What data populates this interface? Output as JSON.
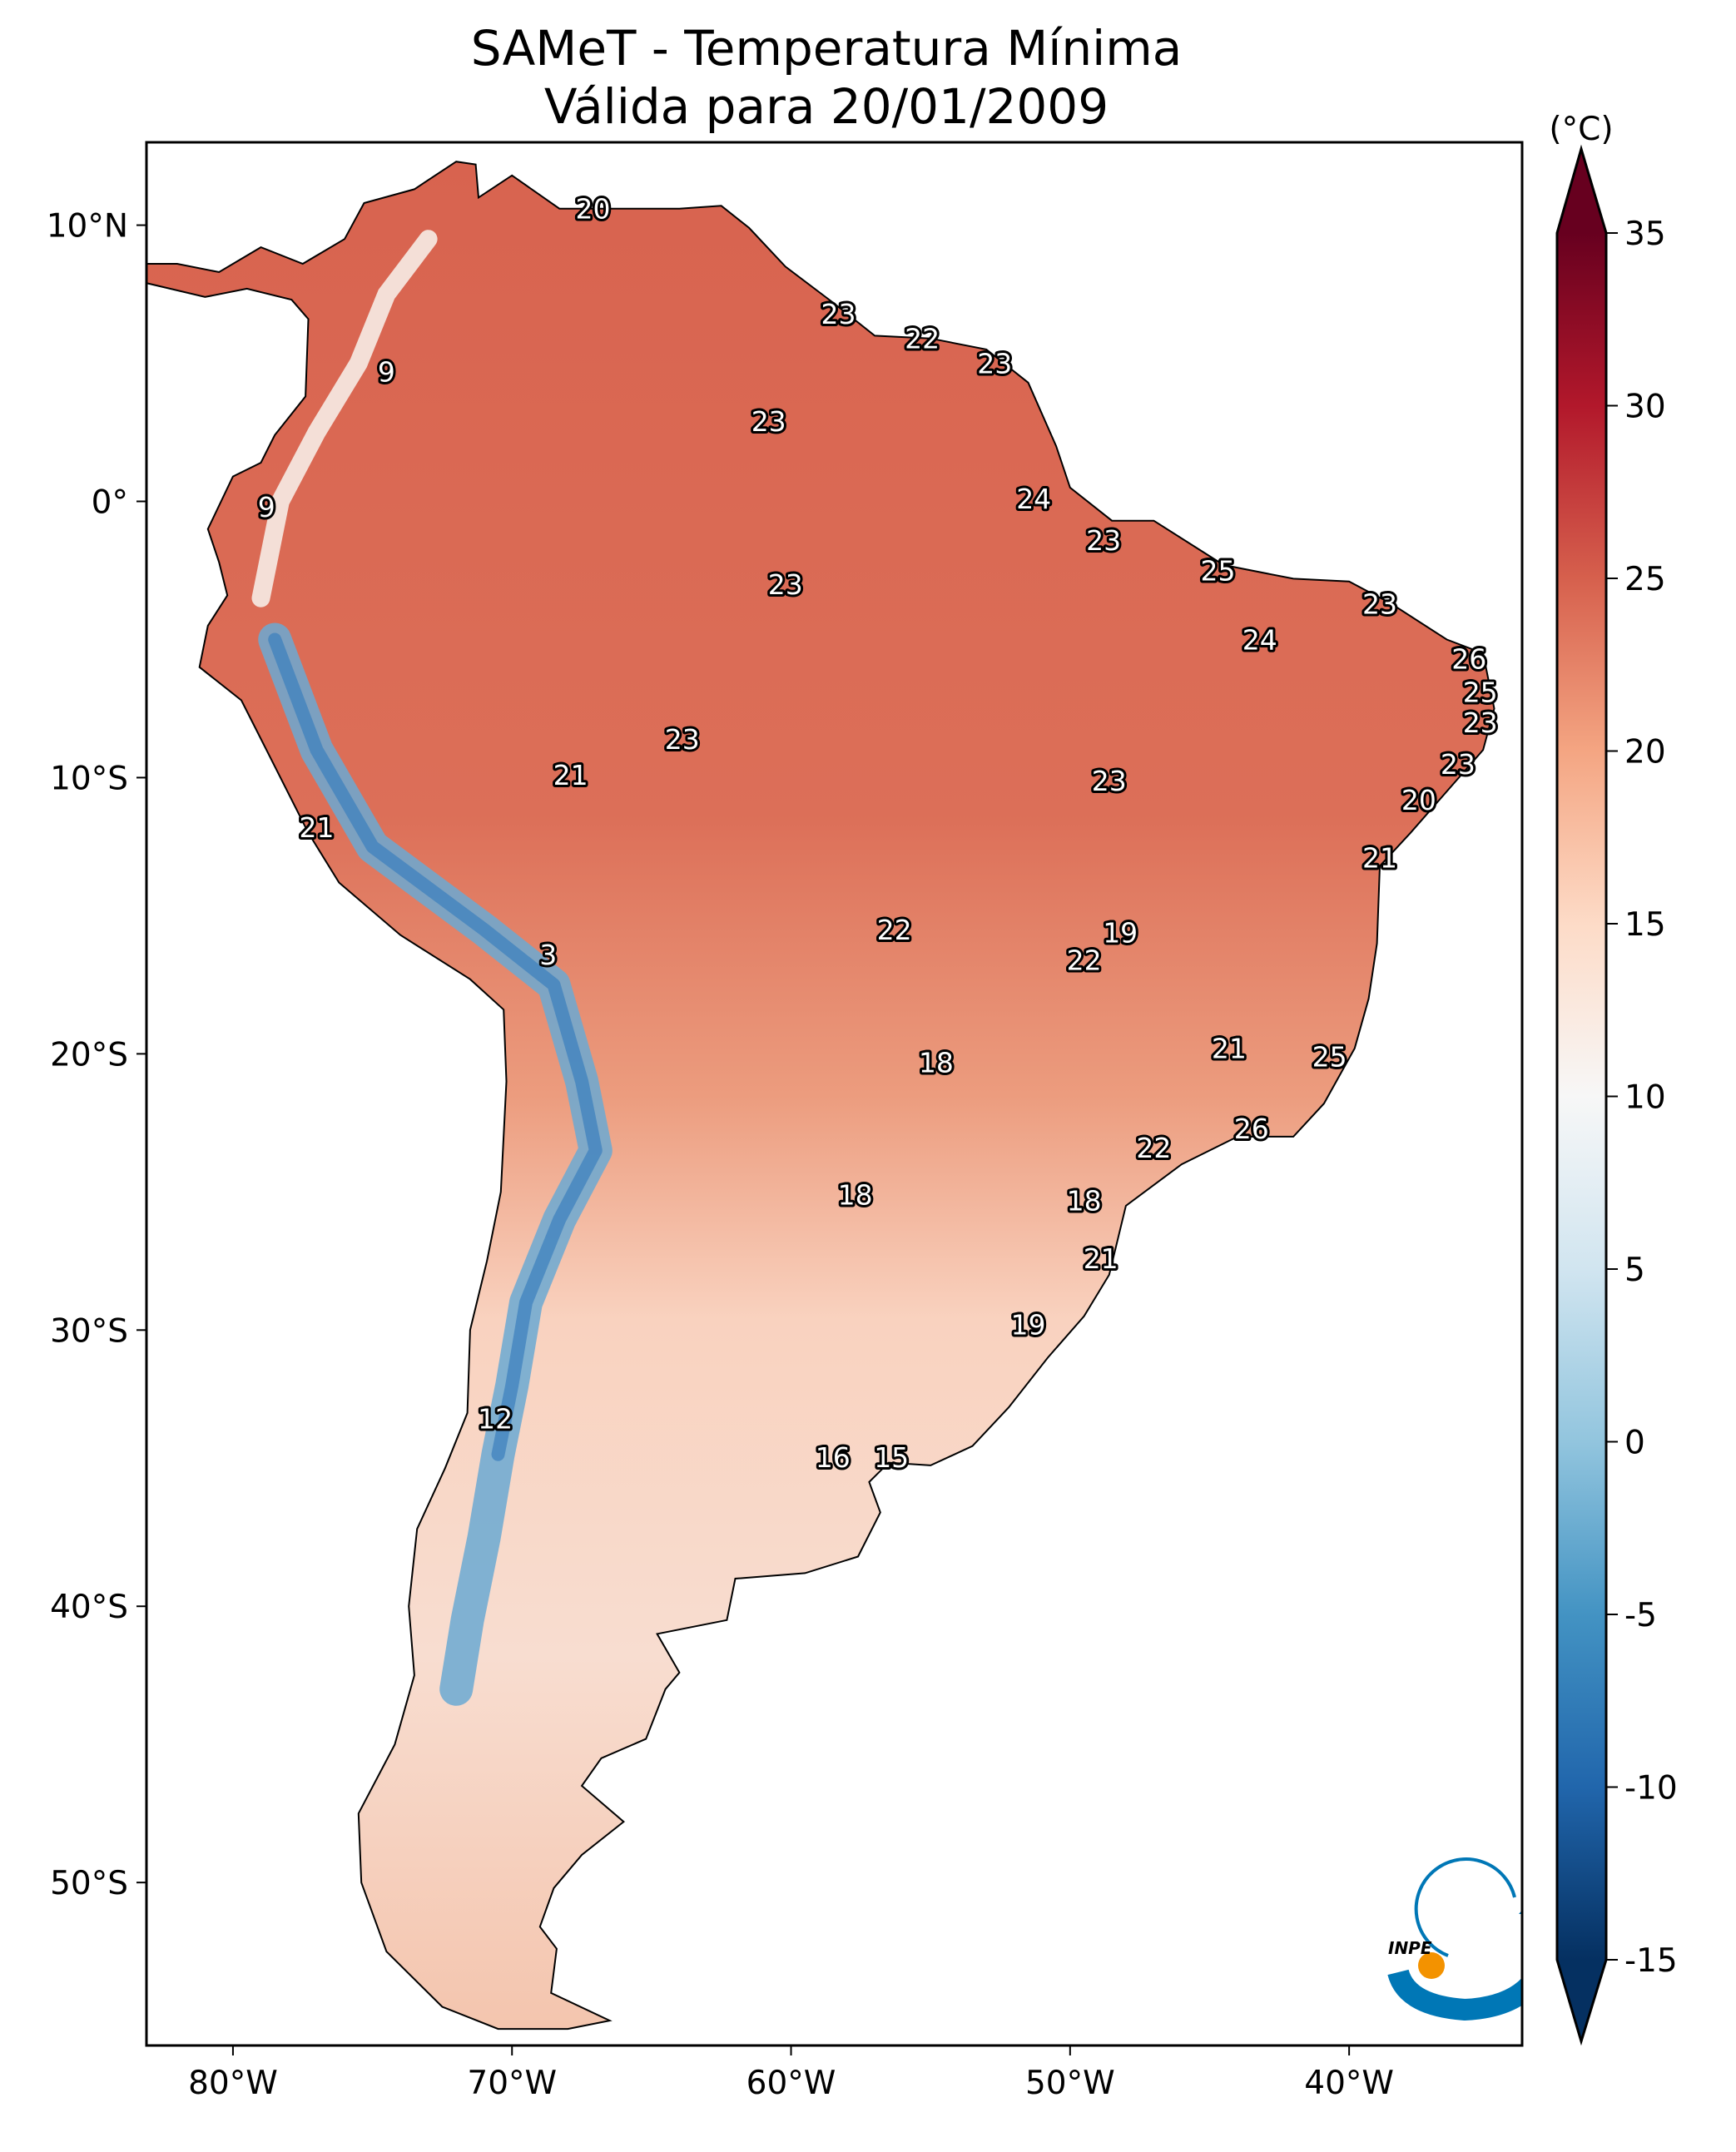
{
  "chart_data": {
    "type": "heatmap",
    "title": "SAMeT - Temperatura Mínima",
    "subtitle": "Válida para 20/01/2009",
    "xlim": [
      -83.1,
      -33.8
    ],
    "ylim": [
      -55.9,
      13.0
    ],
    "x_ticks": [
      {
        "value": -80,
        "label": "80°W"
      },
      {
        "value": -70,
        "label": "70°W"
      },
      {
        "value": -60,
        "label": "60°W"
      },
      {
        "value": -50,
        "label": "50°W"
      },
      {
        "value": -40,
        "label": "40°W"
      }
    ],
    "y_ticks": [
      {
        "value": 10,
        "label": "10°N"
      },
      {
        "value": 0,
        "label": "0°"
      },
      {
        "value": -10,
        "label": "10°S"
      },
      {
        "value": -20,
        "label": "20°S"
      },
      {
        "value": -30,
        "label": "30°S"
      },
      {
        "value": -40,
        "label": "40°S"
      },
      {
        "value": -50,
        "label": "50°S"
      }
    ],
    "colorbar": {
      "label": "(°C)",
      "colormap": "RdBu_r",
      "range": [
        -15,
        35
      ],
      "extend": "both",
      "ticks": [
        {
          "value": 35,
          "label": "35"
        },
        {
          "value": 30,
          "label": "30"
        },
        {
          "value": 25,
          "label": "25"
        },
        {
          "value": 20,
          "label": "20"
        },
        {
          "value": 15,
          "label": "15"
        },
        {
          "value": 10,
          "label": "10"
        },
        {
          "value": 5,
          "label": "5"
        },
        {
          "value": 0,
          "label": "0"
        },
        {
          "value": -5,
          "label": "-5"
        },
        {
          "value": -10,
          "label": "-10"
        },
        {
          "value": -15,
          "label": "-15"
        }
      ]
    },
    "station_labels": [
      {
        "lon": -67.1,
        "lat": 10.6,
        "value": "20"
      },
      {
        "lon": -58.3,
        "lat": 6.8,
        "value": "23"
      },
      {
        "lon": -55.3,
        "lat": 5.9,
        "value": "22"
      },
      {
        "lon": -52.7,
        "lat": 5.0,
        "value": "23"
      },
      {
        "lon": -74.5,
        "lat": 4.7,
        "value": "9"
      },
      {
        "lon": -60.8,
        "lat": 2.9,
        "value": "23"
      },
      {
        "lon": -51.3,
        "lat": 0.1,
        "value": "24"
      },
      {
        "lon": -78.8,
        "lat": -0.2,
        "value": "9"
      },
      {
        "lon": -48.8,
        "lat": -1.4,
        "value": "23"
      },
      {
        "lon": -44.7,
        "lat": -2.5,
        "value": "25"
      },
      {
        "lon": -60.2,
        "lat": -3.0,
        "value": "23"
      },
      {
        "lon": -38.9,
        "lat": -3.7,
        "value": "23"
      },
      {
        "lon": -43.2,
        "lat": -5.0,
        "value": "24"
      },
      {
        "lon": -35.7,
        "lat": -5.7,
        "value": "26"
      },
      {
        "lon": -35.3,
        "lat": -6.9,
        "value": "25"
      },
      {
        "lon": -35.3,
        "lat": -8.0,
        "value": "23"
      },
      {
        "lon": -63.9,
        "lat": -8.6,
        "value": "23"
      },
      {
        "lon": -36.1,
        "lat": -9.5,
        "value": "23"
      },
      {
        "lon": -48.6,
        "lat": -10.1,
        "value": "23"
      },
      {
        "lon": -67.9,
        "lat": -9.9,
        "value": "21"
      },
      {
        "lon": -37.5,
        "lat": -10.8,
        "value": "20"
      },
      {
        "lon": -77.0,
        "lat": -11.8,
        "value": "21"
      },
      {
        "lon": -38.9,
        "lat": -12.9,
        "value": "21"
      },
      {
        "lon": -56.3,
        "lat": -15.5,
        "value": "22"
      },
      {
        "lon": -48.2,
        "lat": -15.6,
        "value": "19"
      },
      {
        "lon": -68.7,
        "lat": -16.4,
        "value": "3"
      },
      {
        "lon": -49.5,
        "lat": -16.6,
        "value": "22"
      },
      {
        "lon": -44.3,
        "lat": -19.8,
        "value": "21"
      },
      {
        "lon": -40.7,
        "lat": -20.1,
        "value": "25"
      },
      {
        "lon": -54.8,
        "lat": -20.3,
        "value": "18"
      },
      {
        "lon": -43.5,
        "lat": -22.7,
        "value": "26"
      },
      {
        "lon": -47.0,
        "lat": -23.4,
        "value": "22"
      },
      {
        "lon": -57.7,
        "lat": -25.1,
        "value": "18"
      },
      {
        "lon": -49.5,
        "lat": -25.3,
        "value": "18"
      },
      {
        "lon": -48.9,
        "lat": -27.4,
        "value": "21"
      },
      {
        "lon": -51.5,
        "lat": -29.8,
        "value": "19"
      },
      {
        "lon": -70.6,
        "lat": -33.2,
        "value": "12"
      },
      {
        "lon": -58.5,
        "lat": -34.6,
        "value": "16"
      },
      {
        "lon": -56.4,
        "lat": -34.6,
        "value": "15"
      }
    ]
  },
  "logo": {
    "text": "INPE",
    "colors": {
      "blue": "#0077b6",
      "orange": "#f39200"
    }
  }
}
